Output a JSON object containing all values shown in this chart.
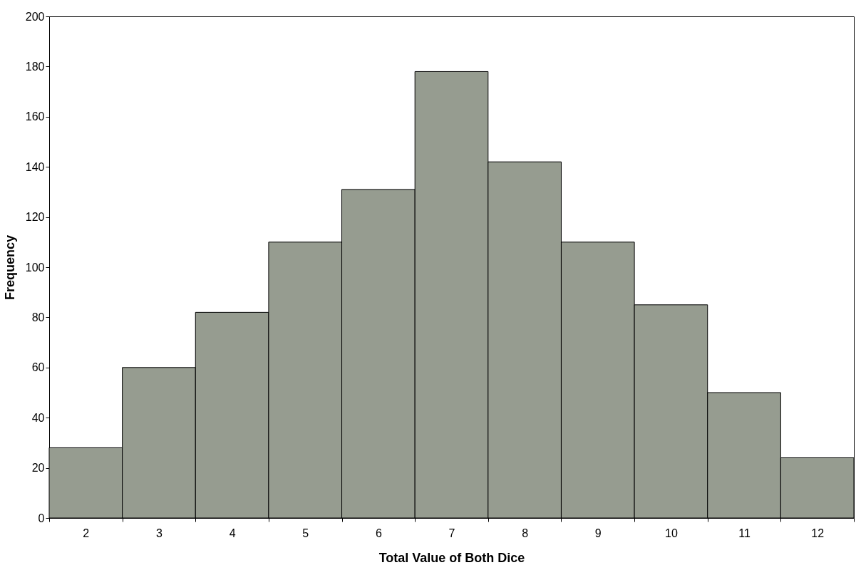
{
  "chart_data": {
    "type": "bar",
    "xlabel": "Total Value of Both Dice",
    "ylabel": "Frequency",
    "categories": [
      "2",
      "3",
      "4",
      "5",
      "6",
      "7",
      "8",
      "9",
      "10",
      "11",
      "12"
    ],
    "values": [
      28,
      60,
      82,
      110,
      131,
      178,
      142,
      110,
      85,
      50,
      24
    ],
    "color": "#969c90",
    "ylim": [
      0,
      200
    ],
    "yticks": [
      0,
      20,
      40,
      60,
      80,
      100,
      120,
      140,
      160,
      180,
      200
    ],
    "grid": false
  }
}
